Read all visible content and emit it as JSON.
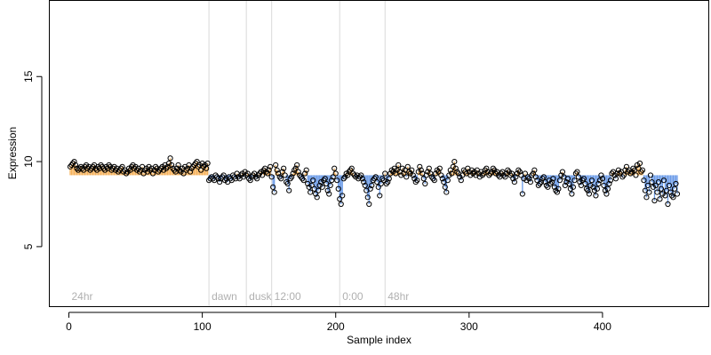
{
  "chart_data": {
    "type": "scatter",
    "title": "",
    "xlabel": "Sample index",
    "ylabel": "Expression",
    "xlim": [
      -15,
      480
    ],
    "ylim": [
      1.5,
      19.5
    ],
    "xticks": [
      0,
      100,
      200,
      300,
      400
    ],
    "yticks": [
      5,
      10,
      15
    ],
    "grid": false,
    "baseline": 9.2,
    "colors": {
      "above": "#f5b15a",
      "below": "#6b9be8",
      "point_stroke": "#000000",
      "vline": "#d9d9d9",
      "annotation": "#b0b0b0"
    },
    "annotations": [
      {
        "x": 0,
        "label": "24hr"
      },
      {
        "x": 105,
        "label": "dawn"
      },
      {
        "x": 133,
        "label": "dusk"
      },
      {
        "x": 152,
        "label": "12:00"
      },
      {
        "x": 203,
        "label": "0:00"
      },
      {
        "x": 237,
        "label": "48hr"
      }
    ],
    "vlines": [
      105,
      133,
      152,
      203,
      237
    ],
    "series": [
      {
        "segment": "24hr baseline",
        "x_start": 1,
        "y": [
          9.7,
          9.8,
          9.9,
          10.0,
          9.8,
          9.6,
          9.5,
          9.6,
          9.7,
          9.6,
          9.5,
          9.7,
          9.8,
          9.6,
          9.7,
          9.5,
          9.6,
          9.7,
          9.8,
          9.6,
          9.5,
          9.7,
          9.6,
          9.8,
          9.7,
          9.6,
          9.5,
          9.7,
          9.6,
          9.8,
          9.7,
          9.5,
          9.6,
          9.7,
          9.5,
          9.6,
          9.4,
          9.5,
          9.6,
          9.7,
          9.4,
          9.5,
          9.3,
          9.4,
          9.6,
          9.5,
          9.7,
          9.8,
          9.6,
          9.7,
          9.5,
          9.6,
          9.4,
          9.5,
          9.7,
          9.3,
          9.5,
          9.6,
          9.4,
          9.7,
          9.5,
          9.6,
          9.3,
          9.5,
          9.7,
          9.6,
          9.4,
          9.5,
          9.6,
          9.7,
          9.5,
          9.8,
          9.6,
          9.7,
          9.9,
          10.2,
          9.8,
          9.6,
          9.5,
          9.4,
          9.6,
          9.8,
          9.5,
          9.4,
          9.6,
          9.3,
          9.7,
          9.5,
          9.6,
          9.8,
          9.4,
          9.6,
          9.7,
          9.8,
          9.9,
          10.0,
          9.7,
          9.8,
          9.5,
          9.9,
          9.7,
          9.8,
          9.6,
          9.9
        ]
      },
      {
        "segment": "dawn-dusk",
        "x_start": 105,
        "y": [
          8.9,
          9.0,
          9.1,
          9.0,
          8.9,
          9.2,
          9.1,
          9.0,
          8.8,
          9.0,
          9.1,
          9.2,
          8.9,
          9.0,
          8.8,
          9.1,
          9.0,
          8.9,
          9.2,
          9.1,
          9.0,
          9.3,
          9.1,
          9.0,
          9.2,
          9.3,
          9.1,
          9.4,
          9.2,
          9.3
        ]
      },
      {
        "segment": "dusk-12:00",
        "x_start": 135,
        "y": [
          9.0,
          8.9,
          9.1,
          9.2,
          9.3,
          9.1,
          9.0,
          9.2,
          9.3,
          9.4,
          9.2,
          9.5,
          9.6,
          9.4,
          9.3,
          9.5,
          9.7
        ]
      },
      {
        "segment": "12:00-0:00",
        "x_start": 152,
        "y": [
          9.1,
          8.5,
          8.2,
          9.8,
          9.5,
          9.3,
          9.1,
          9.0,
          9.4,
          9.6,
          9.2,
          8.8,
          8.7,
          8.3,
          9.0,
          9.1,
          9.3,
          9.5,
          9.6,
          9.8,
          9.4,
          9.2,
          9.1,
          9.0,
          8.9,
          9.3,
          9.5,
          8.7,
          8.5,
          8.2,
          8.6,
          8.9,
          8.4,
          8.1,
          7.9,
          8.3,
          8.6,
          8.8,
          8.5,
          8.9,
          9.0,
          8.7,
          8.3,
          8.1,
          8.6,
          8.9,
          9.1,
          9.6,
          9.3,
          8.9,
          8.4,
          7.8,
          7.5,
          8.0
        ]
      },
      {
        "segment": "0:00-48hr",
        "x_start": 206,
        "y": [
          9.0,
          9.1,
          9.3,
          9.2,
          9.4,
          9.5,
          9.6,
          9.3,
          9.2,
          9.1,
          9.2,
          9.0,
          9.1,
          9.2,
          9.0,
          8.8,
          8.6,
          8.3,
          7.9,
          7.5,
          8.4,
          8.6,
          8.9,
          9.0,
          9.1,
          8.8,
          8.5,
          8.0,
          8.7,
          9.0,
          8.9,
          9.3
        ]
      },
      {
        "segment": "48hr onward",
        "x_start": 238,
        "y": [
          8.7,
          8.8,
          9.0,
          9.3,
          9.5,
          9.4,
          9.6,
          9.3,
          9.5,
          9.8,
          9.4,
          9.2,
          9.6,
          9.3,
          9.5,
          9.1,
          9.7,
          9.4,
          9.3,
          9.5,
          9.2,
          9.0,
          8.8,
          8.9,
          9.4,
          9.7,
          9.5,
          9.3,
          9.0,
          8.7,
          9.2,
          9.4,
          9.6,
          9.3,
          9.1,
          9.0,
          8.9,
          9.3,
          9.5,
          9.4,
          9.6,
          9.2,
          9.0,
          8.8,
          8.5,
          8.2,
          8.9,
          9.2,
          9.5,
          9.3,
          9.7,
          10.0,
          9.6,
          9.4,
          9.3,
          9.1,
          8.9,
          9.2,
          9.5,
          9.4,
          9.3,
          9.6,
          9.4,
          9.2,
          9.5,
          9.3,
          9.4,
          9.2,
          9.5,
          9.3,
          9.1,
          9.4,
          9.2,
          9.3,
          9.5,
          9.6,
          9.4,
          9.2,
          9.3,
          9.4,
          9.6,
          9.5,
          9.3,
          9.4,
          9.2,
          9.1,
          9.3,
          9.4,
          9.2,
          9.1,
          9.3,
          9.5,
          9.4,
          9.2,
          9.3,
          9.0,
          8.8,
          9.1,
          9.3,
          9.5,
          9.4,
          9.2,
          8.1,
          9.0,
          9.3,
          8.9,
          9.1,
          9.0,
          8.8,
          9.2,
          9.3,
          9.5,
          9.1,
          8.9,
          8.6,
          8.7,
          8.8,
          9.0,
          9.1,
          8.8,
          8.6,
          8.5,
          8.9,
          8.7,
          8.8,
          9.0,
          8.5,
          8.3,
          8.2,
          8.4,
          8.9,
          9.2,
          9.4,
          9.1,
          8.6,
          8.8,
          9.0,
          8.7,
          8.4,
          8.1,
          8.5,
          8.9,
          9.3,
          9.4,
          9.1,
          8.8,
          8.6,
          8.9,
          9.0,
          8.7,
          8.4,
          8.3,
          8.1,
          8.6,
          8.9,
          8.5,
          8.3,
          8.0,
          8.4,
          8.7,
          8.9,
          9.2,
          9.0,
          8.6,
          8.3,
          8.1,
          8.4,
          8.7,
          8.9,
          9.3,
          9.4,
          9.2,
          9.0,
          9.3,
          9.5,
          9.3,
          9.4,
          9.1,
          9.2,
          9.5,
          9.7,
          9.4,
          9.5,
          9.3,
          9.4,
          9.6,
          9.5,
          9.2,
          9.8,
          9.6,
          9.9,
          9.4,
          9.5,
          8.9,
          8.3,
          7.9,
          8.6,
          8.2,
          9.2,
          8.8,
          8.5,
          7.7,
          8.6,
          8.2,
          8.8,
          7.8,
          8.4,
          8.1,
          8.9,
          8.0,
          8.3,
          7.5,
          8.6,
          8.2,
          8.0,
          7.9,
          8.4,
          8.7,
          8.1
        ]
      }
    ]
  }
}
